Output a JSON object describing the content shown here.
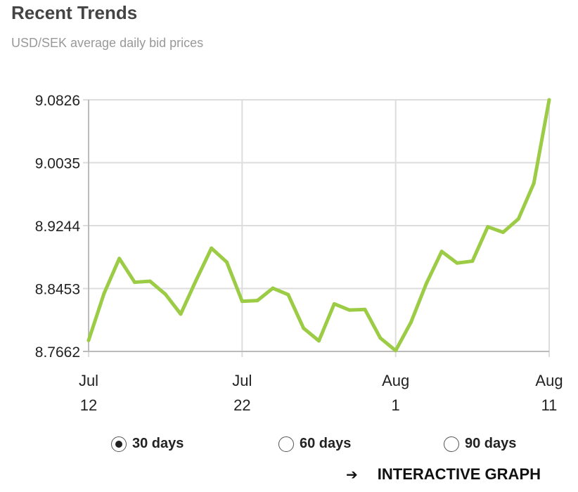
{
  "header": {
    "title": "Recent Trends",
    "subtitle": "USD/SEK average daily bid prices"
  },
  "colors": {
    "line": "#9ccc45",
    "grid": "#dddddd",
    "axis": "#bbbbbb",
    "text": "#222222"
  },
  "chart_data": {
    "type": "line",
    "title": "",
    "xlabel": "",
    "ylabel": "",
    "ylim": [
      8.7662,
      9.0826
    ],
    "y_ticks": [
      "8.7662",
      "8.8453",
      "8.9244",
      "9.0035",
      "9.0826"
    ],
    "x_ticks": [
      {
        "month": "Jul",
        "day": "12",
        "x": 0
      },
      {
        "month": "Jul",
        "day": "22",
        "x": 10
      },
      {
        "month": "Aug",
        "day": "1",
        "x": 20
      },
      {
        "month": "Aug",
        "day": "11",
        "x": 30
      }
    ],
    "grid": true,
    "series": [
      {
        "x": [
          0,
          1,
          2,
          3,
          4,
          5,
          6,
          7,
          8,
          9,
          10,
          11,
          12,
          13,
          14,
          15,
          16,
          17,
          18,
          19,
          20,
          21,
          22,
          23,
          24,
          25,
          26,
          27,
          28,
          29,
          30
        ],
        "values": [
          8.7801,
          8.8388,
          8.8831,
          8.8532,
          8.8545,
          8.8382,
          8.8132,
          8.8556,
          8.896,
          8.8785,
          8.8293,
          8.8302,
          8.8457,
          8.8376,
          8.7954,
          8.7795,
          8.826,
          8.8182,
          8.819,
          8.7831,
          8.7673,
          8.8029,
          8.8516,
          8.8919,
          8.8773,
          8.8797,
          8.9229,
          8.916,
          8.9329,
          8.9775,
          9.0826
        ]
      }
    ]
  },
  "range_options": [
    {
      "label": "30 days",
      "selected": true
    },
    {
      "label": "60 days",
      "selected": false
    },
    {
      "label": "90 days",
      "selected": false
    }
  ],
  "link": {
    "label": "INTERACTIVE GRAPH",
    "icon": "arrow-right-icon"
  }
}
